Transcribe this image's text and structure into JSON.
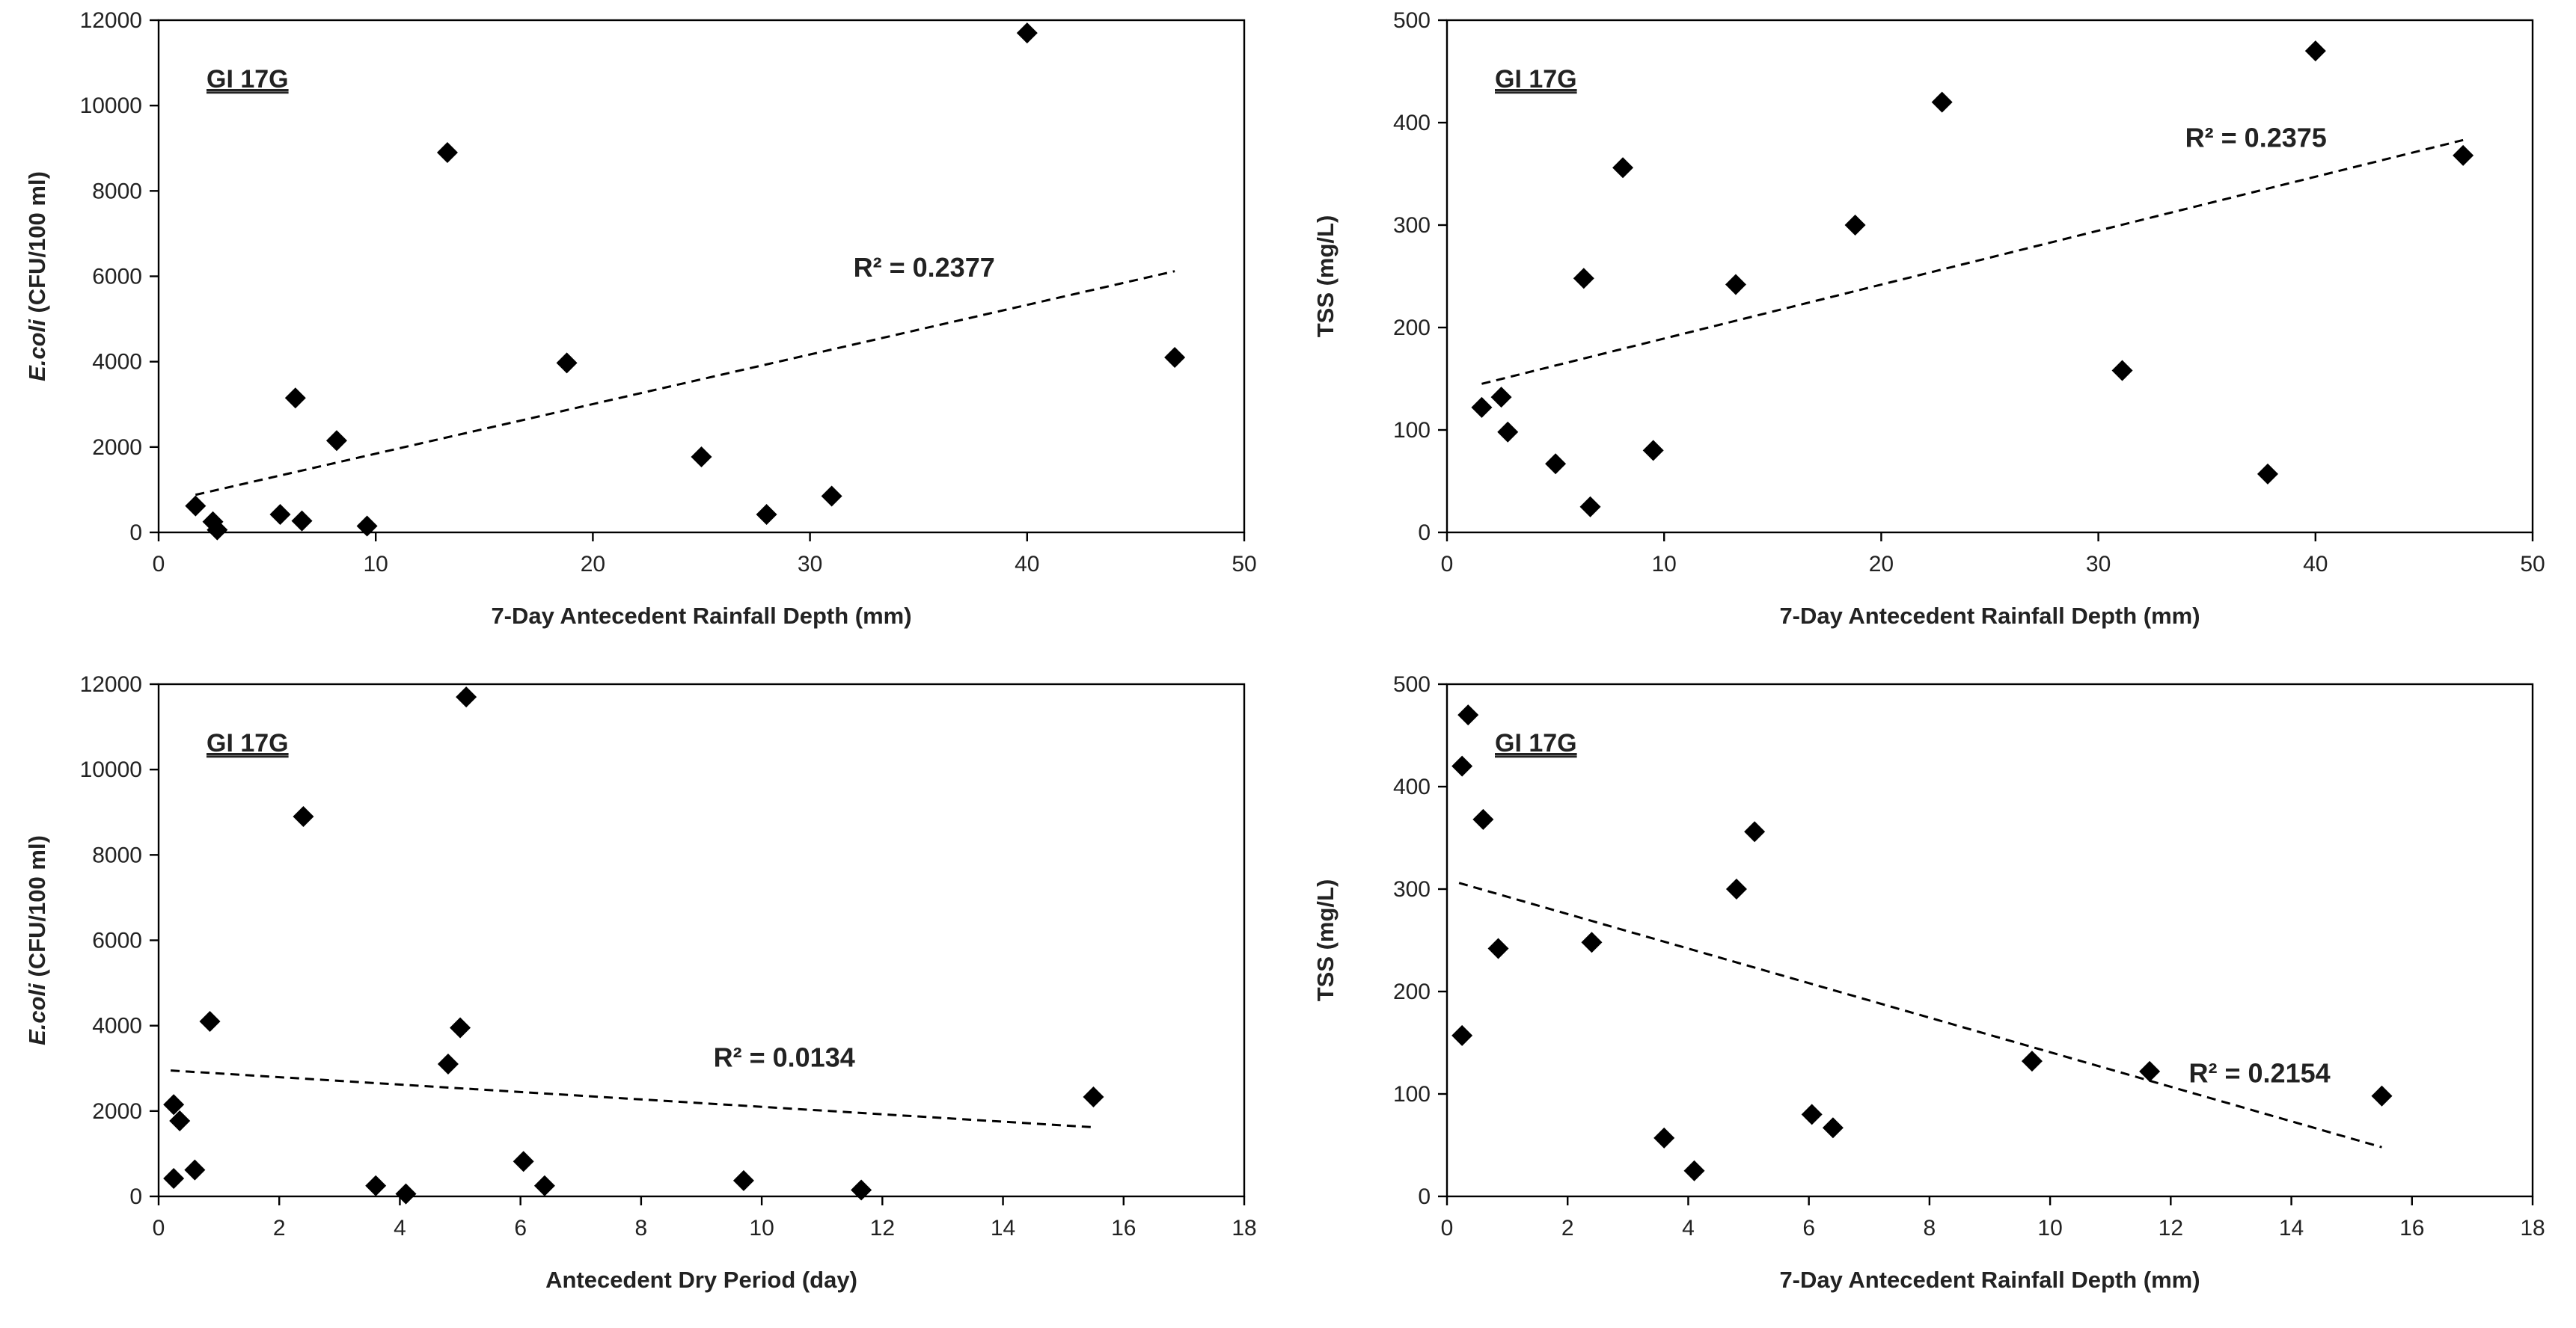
{
  "chart_data": [
    {
      "type": "scatter",
      "title": "",
      "series_tag": "GI 17G",
      "xlabel": "7-Day Antecedent Rainfall Depth (mm)",
      "ylabel_italic": "E.coli",
      "ylabel_rest": " (CFU/100 ml)",
      "xlim": [
        0,
        50
      ],
      "ylim": [
        0,
        12000
      ],
      "xticks": [
        "0",
        "10",
        "20",
        "30",
        "40",
        "50"
      ],
      "yticks": [
        "0",
        "2000",
        "4000",
        "6000",
        "8000",
        "10000",
        "12000"
      ],
      "x": [
        1.7,
        2.5,
        2.7,
        5.6,
        6.3,
        6.6,
        8.2,
        9.6,
        13.3,
        18.8,
        25.0,
        28.0,
        31.0,
        40.0,
        46.8
      ],
      "y": [
        620,
        250,
        60,
        420,
        3150,
        270,
        2150,
        150,
        8900,
        3970,
        1770,
        420,
        850,
        11700,
        4100
      ],
      "trendline": {
        "x": [
          1.7,
          46.8
        ],
        "y": [
          880,
          6120
        ],
        "style": "dashed"
      },
      "r2_label": "R² = 0.2377",
      "r2_at": {
        "x": 32,
        "y": 6200
      }
    },
    {
      "type": "scatter",
      "title": "",
      "series_tag": "GI 17G",
      "xlabel": "7-Day Antecedent Rainfall Depth (mm)",
      "ylabel_italic": "",
      "ylabel_rest": "TSS (mg/L)",
      "xlim": [
        0,
        50
      ],
      "ylim": [
        0,
        500
      ],
      "xticks": [
        "0",
        "10",
        "20",
        "30",
        "40",
        "50"
      ],
      "yticks": [
        "0",
        "100",
        "200",
        "300",
        "400",
        "500"
      ],
      "x": [
        1.6,
        2.5,
        2.8,
        5.0,
        6.3,
        6.6,
        8.1,
        9.5,
        13.3,
        18.8,
        22.8,
        31.1,
        37.8,
        40.0,
        46.8
      ],
      "y": [
        122,
        132,
        98,
        67,
        248,
        25,
        356,
        80,
        242,
        300,
        420,
        158,
        57,
        470,
        368
      ],
      "trendline": {
        "x": [
          1.6,
          46.8
        ],
        "y": [
          145,
          383
        ],
        "style": "dashed"
      },
      "r2_label": "R² = 0.2375",
      "r2_at": {
        "x": 34,
        "y": 385
      }
    },
    {
      "type": "scatter",
      "title": "",
      "series_tag": "GI 17G",
      "xlabel": "Antecedent Dry Period (day)",
      "ylabel_italic": "E.coli",
      "ylabel_rest": " (CFU/100 ml)",
      "xlim": [
        0,
        18
      ],
      "ylim": [
        0,
        12000
      ],
      "xticks": [
        "0",
        "2",
        "4",
        "6",
        "8",
        "10",
        "12",
        "14",
        "16",
        "18"
      ],
      "yticks": [
        "0",
        "2000",
        "4000",
        "6000",
        "8000",
        "10000",
        "12000"
      ],
      "x": [
        0.25,
        0.25,
        0.35,
        0.6,
        0.85,
        2.4,
        3.6,
        4.1,
        4.8,
        5.0,
        5.1,
        6.05,
        6.4,
        9.7,
        11.65,
        15.5
      ],
      "y": [
        2150,
        420,
        1770,
        620,
        4100,
        8900,
        250,
        60,
        3100,
        3950,
        11700,
        820,
        250,
        370,
        150,
        2330
      ],
      "trendline": {
        "x": [
          0.2,
          15.5
        ],
        "y": [
          2950,
          1620
        ],
        "style": "dashed"
      },
      "r2_label": "R² = 0.0134",
      "r2_at": {
        "x": 9.2,
        "y": 3250
      }
    },
    {
      "type": "scatter",
      "title": "",
      "series_tag": "GI 17G",
      "xlabel": "7-Day Antecedent Rainfall Depth (mm)",
      "ylabel_italic": "",
      "ylabel_rest": "TSS (mg/L)",
      "xlim": [
        0,
        18
      ],
      "ylim": [
        0,
        500
      ],
      "xticks": [
        "0",
        "2",
        "4",
        "6",
        "8",
        "10",
        "12",
        "14",
        "16",
        "18"
      ],
      "yticks": [
        "0",
        "100",
        "200",
        "300",
        "400",
        "500"
      ],
      "x": [
        0.25,
        0.25,
        0.35,
        0.6,
        0.85,
        2.4,
        3.6,
        4.1,
        4.8,
        5.1,
        6.05,
        6.4,
        9.7,
        11.65,
        15.5
      ],
      "y": [
        420,
        157,
        470,
        368,
        242,
        248,
        57,
        25,
        300,
        356,
        80,
        67,
        132,
        122,
        98
      ],
      "trendline": {
        "x": [
          0.2,
          15.5
        ],
        "y": [
          306,
          48
        ],
        "style": "dashed"
      },
      "r2_label": "R² = 0.2154",
      "r2_at": {
        "x": 12.3,
        "y": 120
      }
    }
  ]
}
